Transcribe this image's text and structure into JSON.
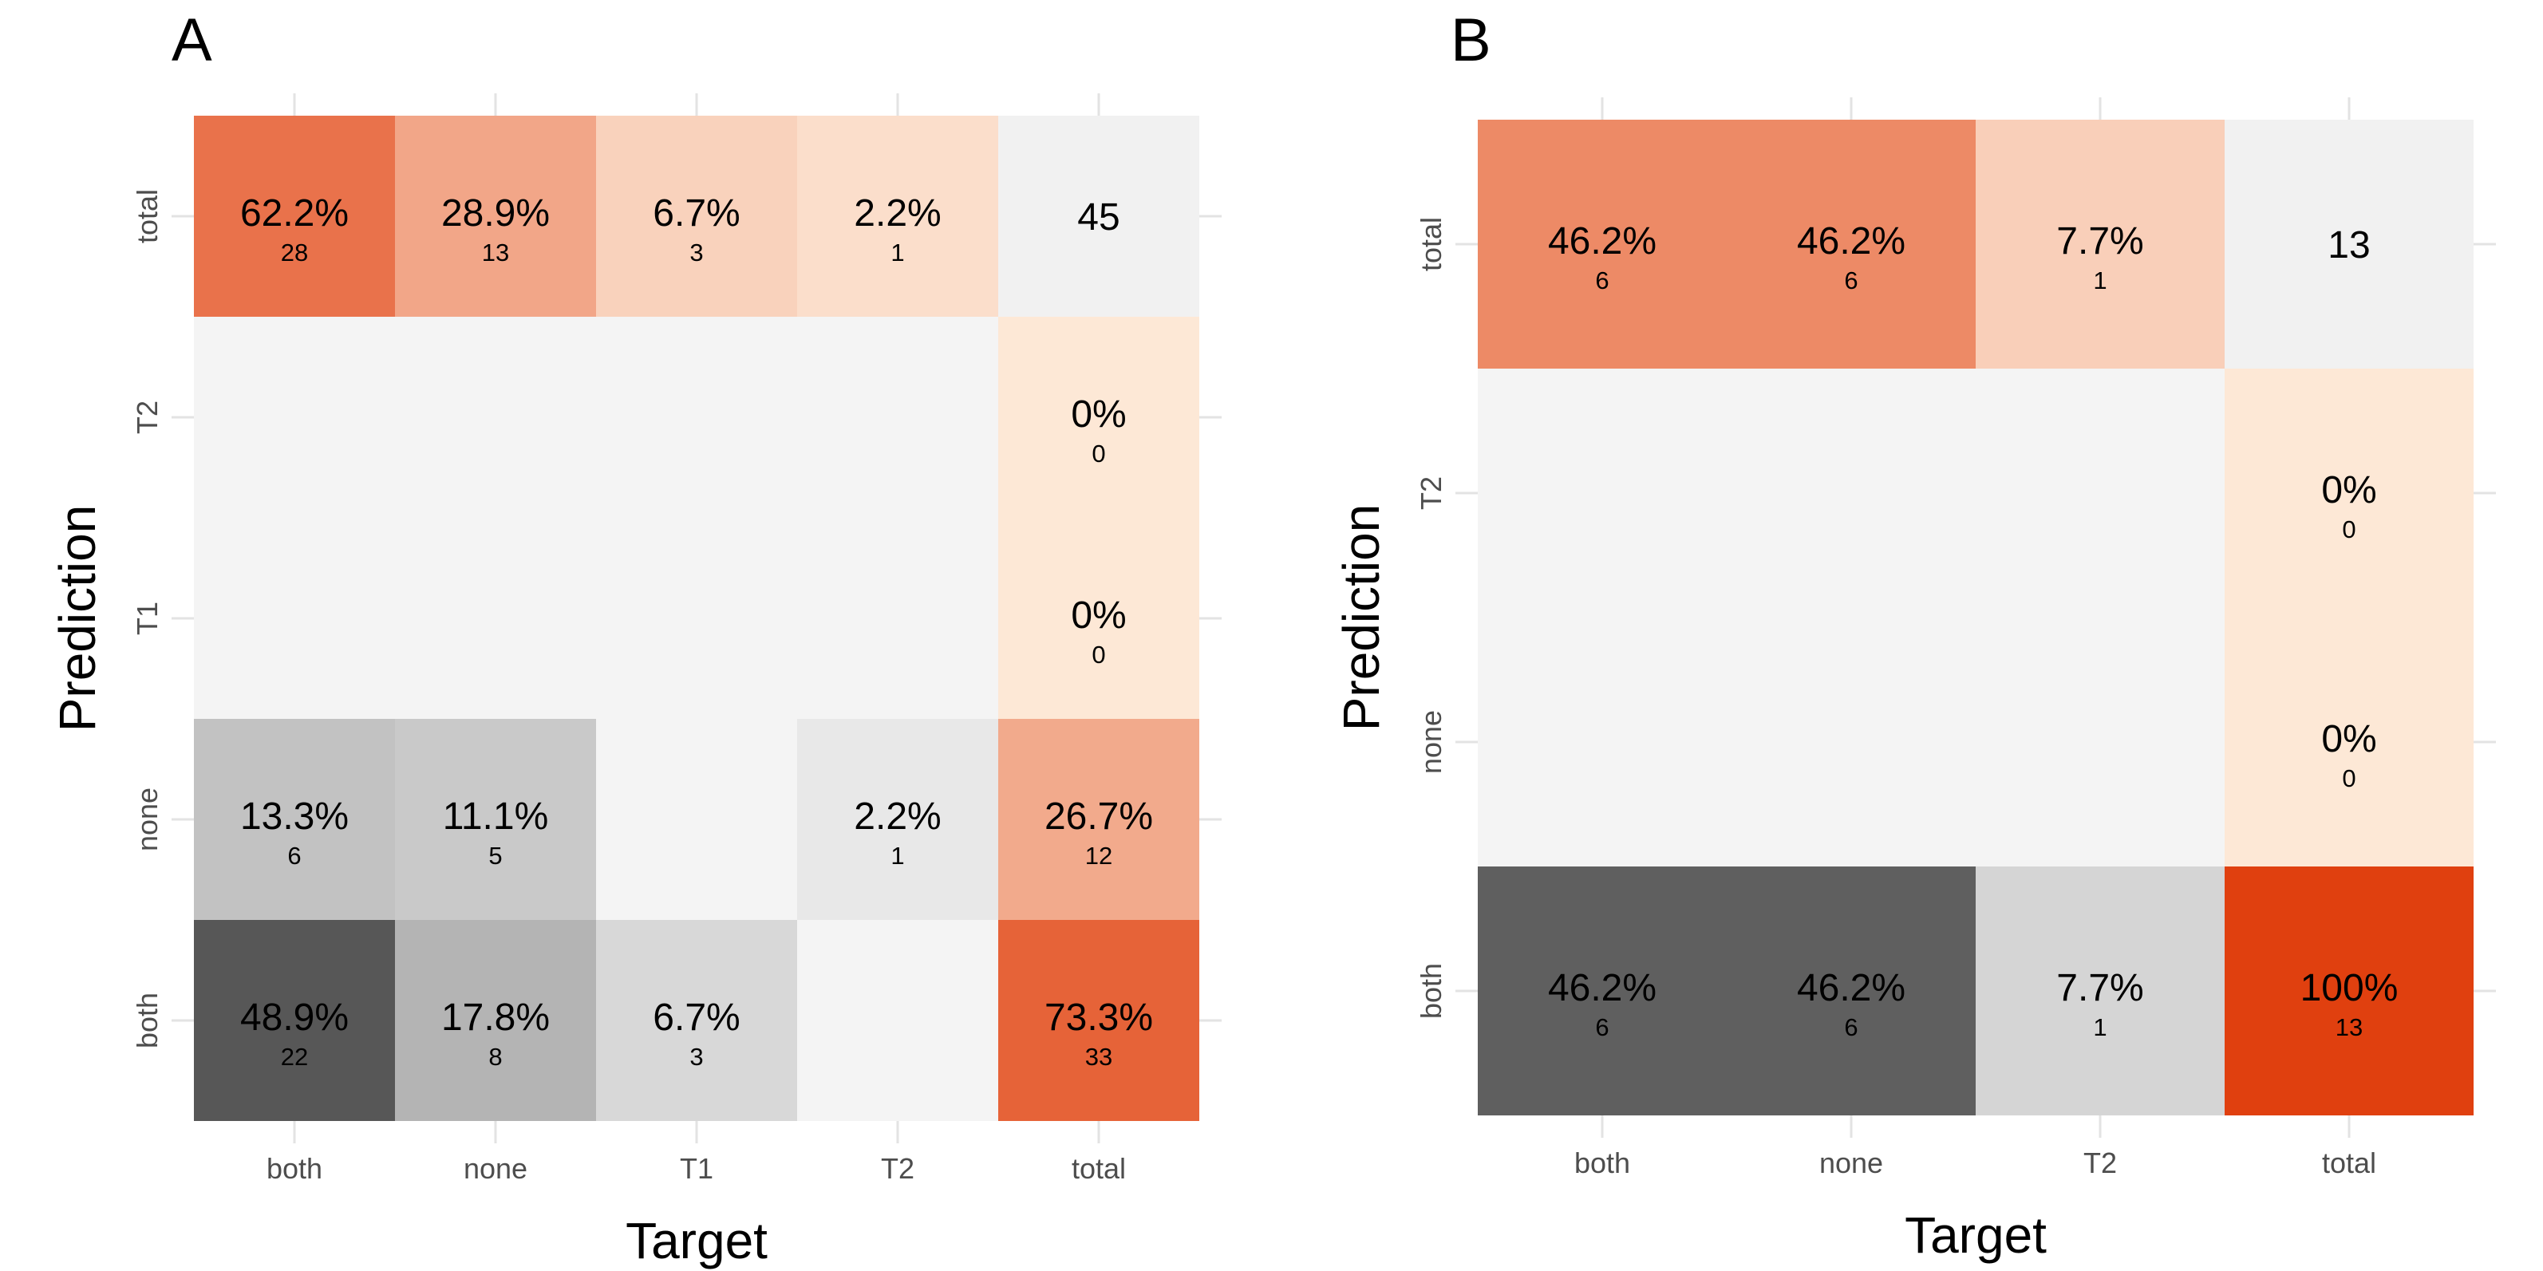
{
  "chart_data": [
    {
      "panel_label": "A",
      "type": "heatmap",
      "xlabel": "Target",
      "ylabel": "Prediction",
      "x_categories": [
        "both",
        "none",
        "T1",
        "T2",
        "total"
      ],
      "y_categories": [
        "both",
        "none",
        "T1",
        "T2",
        "total"
      ],
      "cells": [
        {
          "x": "both",
          "y": "total",
          "percent": "62.2%",
          "count": "28",
          "value": 62.2,
          "scale": "orange"
        },
        {
          "x": "none",
          "y": "total",
          "percent": "28.9%",
          "count": "13",
          "value": 28.9,
          "scale": "orange"
        },
        {
          "x": "T1",
          "y": "total",
          "percent": "6.7%",
          "count": "3",
          "value": 6.7,
          "scale": "orange"
        },
        {
          "x": "T2",
          "y": "total",
          "percent": "2.2%",
          "count": "1",
          "value": 2.2,
          "scale": "orange"
        },
        {
          "x": "total",
          "y": "total",
          "percent": "45",
          "count": "",
          "value": 0,
          "scale": "total"
        },
        {
          "x": "total",
          "y": "T2",
          "percent": "0%",
          "count": "0",
          "value": 0,
          "scale": "orange"
        },
        {
          "x": "total",
          "y": "T1",
          "percent": "0%",
          "count": "0",
          "value": 0,
          "scale": "orange"
        },
        {
          "x": "both",
          "y": "none",
          "percent": "13.3%",
          "count": "6",
          "value": 13.3,
          "scale": "gray"
        },
        {
          "x": "none",
          "y": "none",
          "percent": "11.1%",
          "count": "5",
          "value": 11.1,
          "scale": "gray"
        },
        {
          "x": "T2",
          "y": "none",
          "percent": "2.2%",
          "count": "1",
          "value": 2.2,
          "scale": "gray"
        },
        {
          "x": "total",
          "y": "none",
          "percent": "26.7%",
          "count": "12",
          "value": 26.7,
          "scale": "orange"
        },
        {
          "x": "both",
          "y": "both",
          "percent": "48.9%",
          "count": "22",
          "value": 48.9,
          "scale": "gray"
        },
        {
          "x": "none",
          "y": "both",
          "percent": "17.8%",
          "count": "8",
          "value": 17.8,
          "scale": "gray"
        },
        {
          "x": "T1",
          "y": "both",
          "percent": "6.7%",
          "count": "3",
          "value": 6.7,
          "scale": "gray"
        },
        {
          "x": "total",
          "y": "both",
          "percent": "73.3%",
          "count": "33",
          "value": 73.3,
          "scale": "orange"
        }
      ]
    },
    {
      "panel_label": "B",
      "type": "heatmap",
      "xlabel": "Target",
      "ylabel": "Prediction",
      "x_categories": [
        "both",
        "none",
        "T2",
        "total"
      ],
      "y_categories": [
        "both",
        "none",
        "T2",
        "total"
      ],
      "cells": [
        {
          "x": "both",
          "y": "total",
          "percent": "46.2%",
          "count": "6",
          "value": 46.2,
          "scale": "orange"
        },
        {
          "x": "none",
          "y": "total",
          "percent": "46.2%",
          "count": "6",
          "value": 46.2,
          "scale": "orange"
        },
        {
          "x": "T2",
          "y": "total",
          "percent": "7.7%",
          "count": "1",
          "value": 7.7,
          "scale": "orange"
        },
        {
          "x": "total",
          "y": "total",
          "percent": "13",
          "count": "",
          "value": 0,
          "scale": "total"
        },
        {
          "x": "total",
          "y": "T2",
          "percent": "0%",
          "count": "0",
          "value": 0,
          "scale": "orange"
        },
        {
          "x": "total",
          "y": "none",
          "percent": "0%",
          "count": "0",
          "value": 0,
          "scale": "orange"
        },
        {
          "x": "both",
          "y": "both",
          "percent": "46.2%",
          "count": "6",
          "value": 46.2,
          "scale": "gray"
        },
        {
          "x": "none",
          "y": "both",
          "percent": "46.2%",
          "count": "6",
          "value": 46.2,
          "scale": "gray"
        },
        {
          "x": "T2",
          "y": "both",
          "percent": "7.7%",
          "count": "1",
          "value": 7.7,
          "scale": "gray"
        },
        {
          "x": "total",
          "y": "both",
          "percent": "100%",
          "count": "13",
          "value": 100,
          "scale": "orange"
        }
      ]
    }
  ],
  "colors": {
    "empty_tile": "#f4f4f4",
    "total_tile": "#f1f1f1",
    "orange_low": "#fde8d6",
    "orange_high": "#e0400f",
    "gray_low": "#f2f2f2",
    "gray_high": "#575757",
    "grid": "#e3e3e3",
    "tick_text": "#4d4d4d"
  }
}
